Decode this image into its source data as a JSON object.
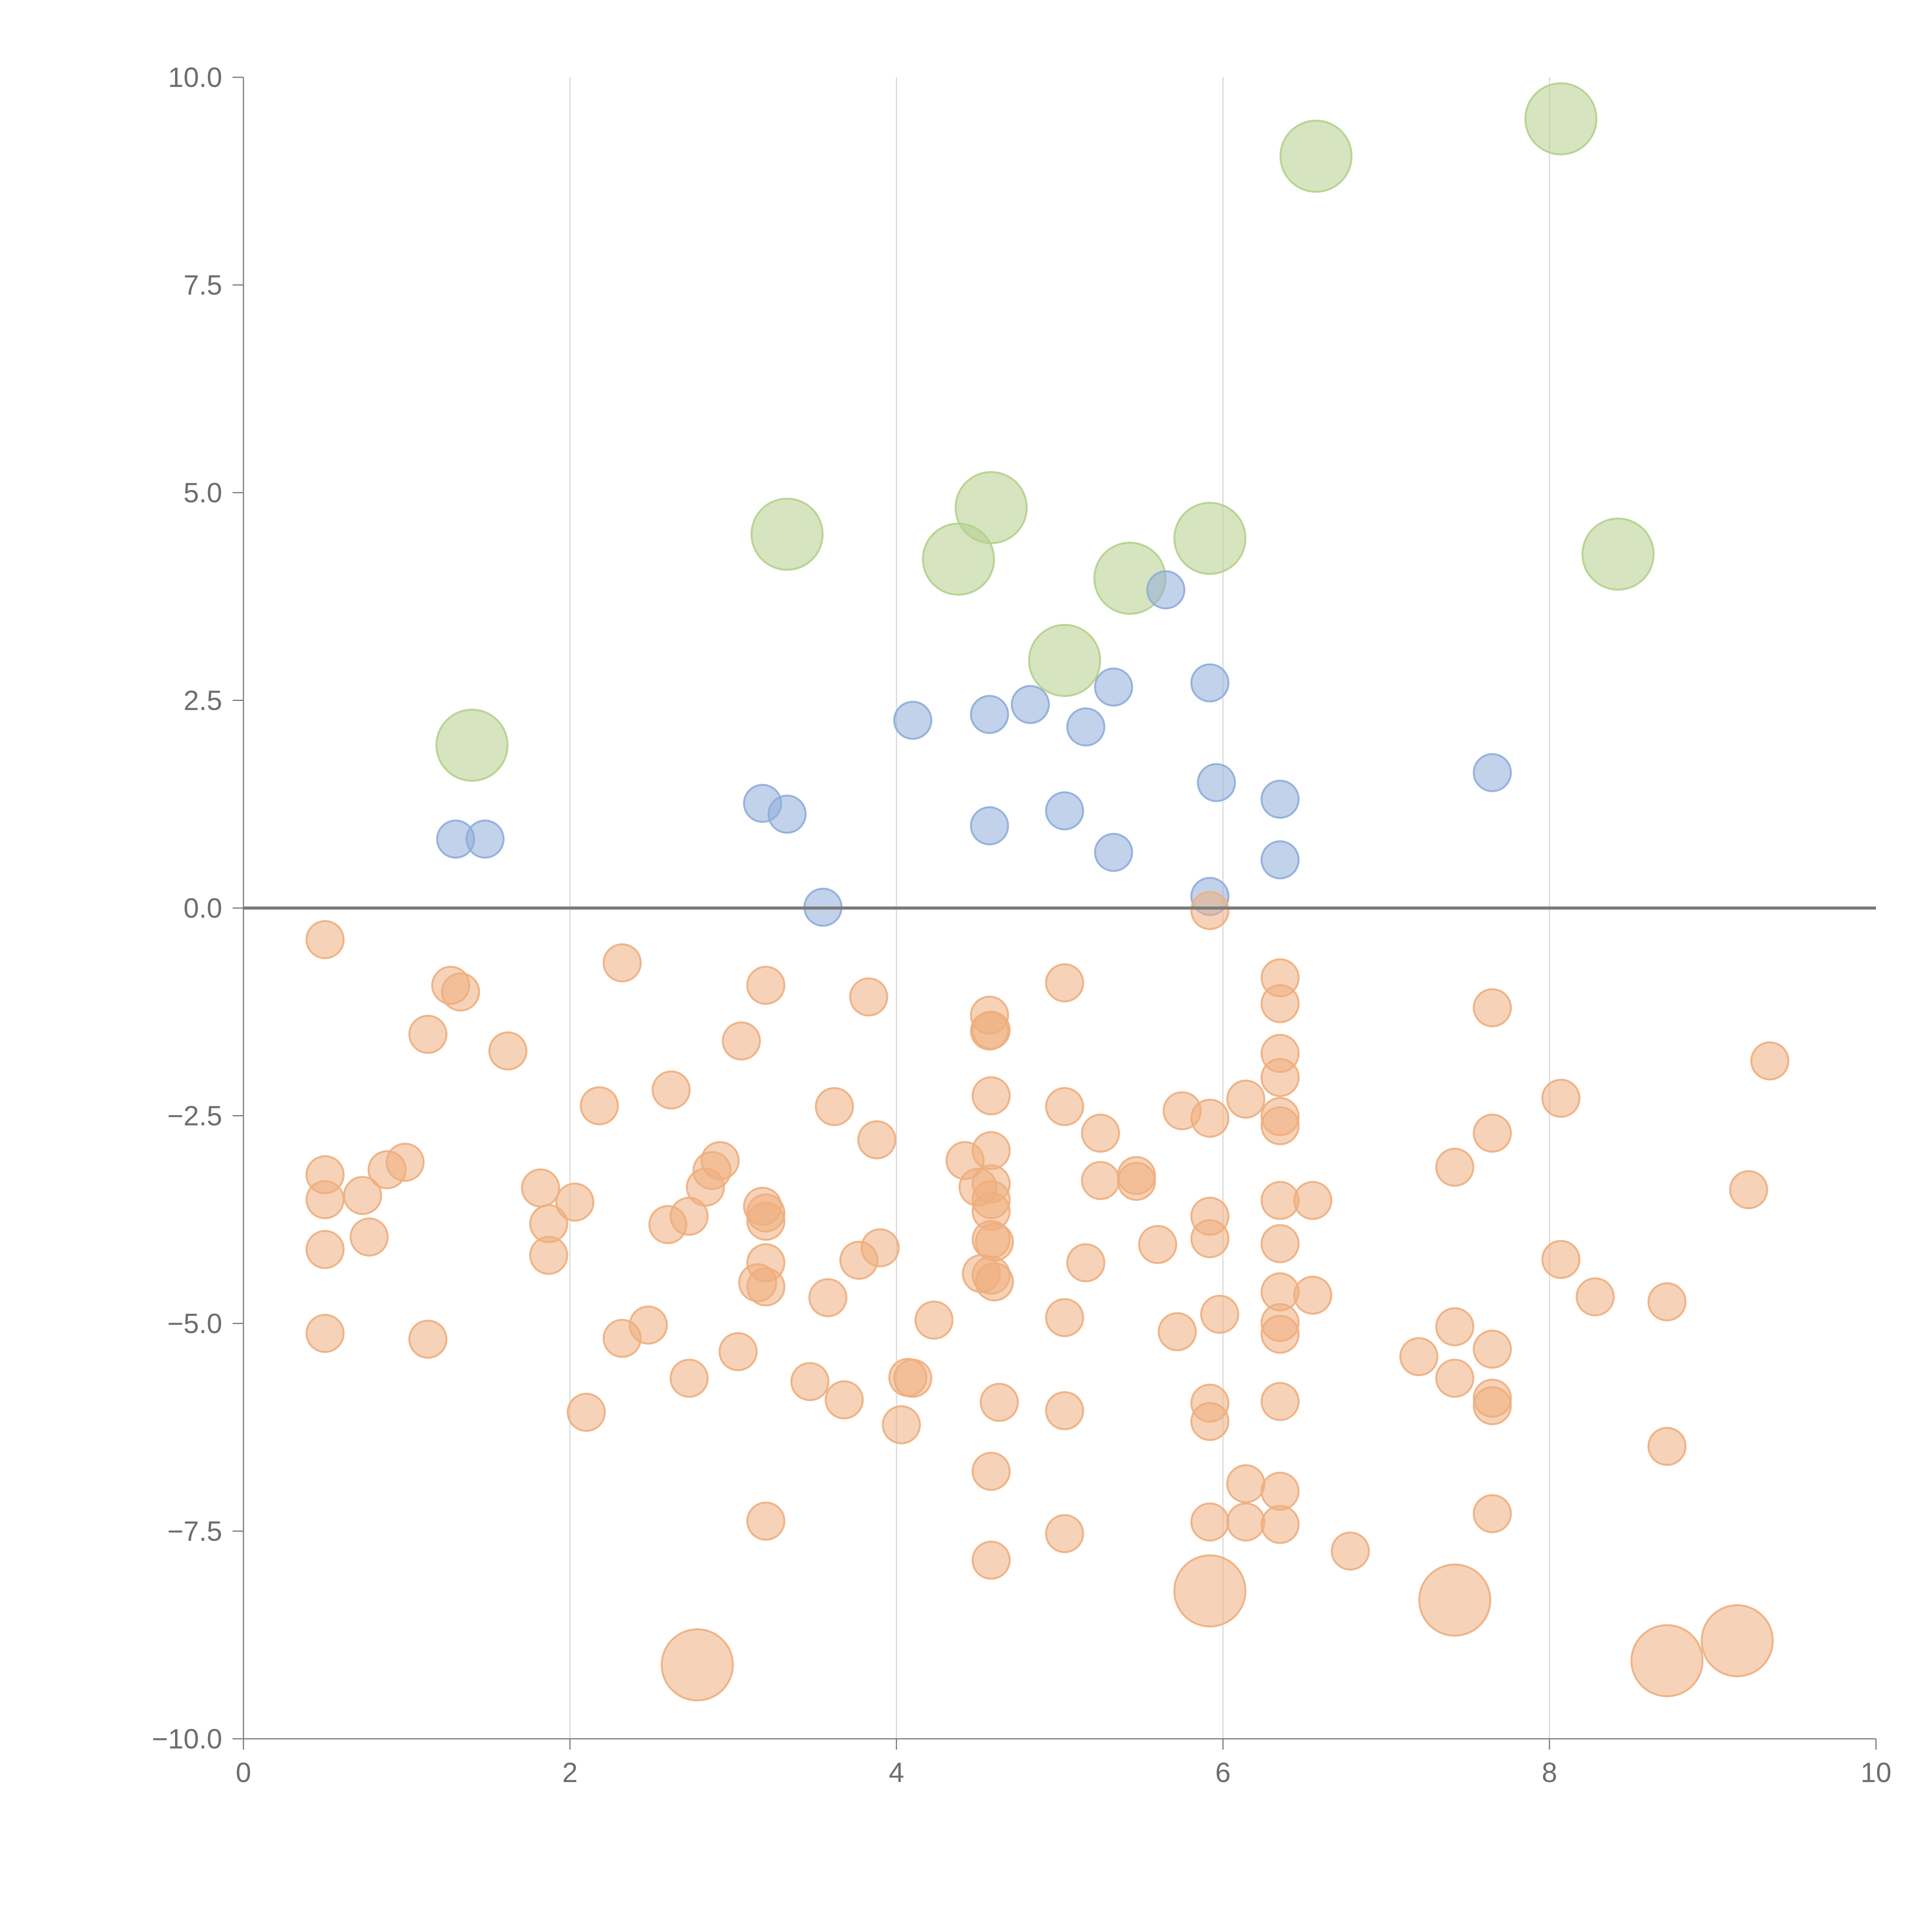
{
  "chart_data": {
    "type": "scatter",
    "title": "",
    "xlabel": "",
    "ylabel": "",
    "xlim": [
      0,
      10
    ],
    "ylim": [
      -10,
      10
    ],
    "grid": "vertical",
    "x_ticks": [
      0,
      2,
      4,
      6,
      8,
      10
    ],
    "x_tick_labels": [
      "0",
      "2",
      "4",
      "6",
      "8",
      "10"
    ],
    "y_ticks": [
      10,
      7.5,
      5,
      2.5,
      0,
      -2.5,
      -5,
      -7.5,
      -10
    ],
    "y_tick_labels": [
      "10.0",
      "7.5",
      "5.0",
      "2.5",
      "0.0",
      "−2.5",
      "−5.0",
      "−7.5",
      "−10.0"
    ],
    "colors": {
      "large_positive": "#b5d08c",
      "positive": "#8fadda",
      "negative": "#eeae7e",
      "large_negative": "#eeae7e"
    },
    "series": [
      {
        "name": "large_positive",
        "size": "large",
        "points": [
          [
            6.57,
            9.05
          ],
          [
            8.07,
            9.5
          ],
          [
            3.33,
            4.5
          ],
          [
            4.58,
            4.82
          ],
          [
            4.38,
            4.2
          ],
          [
            5.92,
            4.45
          ],
          [
            5.43,
            3.97
          ],
          [
            8.42,
            4.26
          ],
          [
            5.03,
            2.98
          ],
          [
            1.4,
            1.96
          ]
        ]
      },
      {
        "name": "positive",
        "size": "small",
        "points": [
          [
            1.3,
            0.83
          ],
          [
            1.48,
            0.83
          ],
          [
            3.18,
            1.26
          ],
          [
            3.33,
            1.13
          ],
          [
            3.55,
            0.01
          ],
          [
            4.1,
            2.26
          ],
          [
            4.57,
            2.33
          ],
          [
            4.82,
            2.45
          ],
          [
            5.16,
            2.18
          ],
          [
            5.33,
            2.66
          ],
          [
            5.92,
            2.71
          ],
          [
            5.65,
            3.83
          ],
          [
            5.96,
            1.51
          ],
          [
            6.35,
            1.31
          ],
          [
            7.65,
            1.63
          ],
          [
            4.57,
            0.99
          ],
          [
            5.03,
            1.17
          ],
          [
            5.33,
            0.67
          ],
          [
            5.92,
            0.14
          ],
          [
            6.35,
            0.58
          ]
        ]
      },
      {
        "name": "negative",
        "size": "small",
        "points": [
          [
            0.5,
            -0.38
          ],
          [
            0.5,
            -3.21
          ],
          [
            0.5,
            -3.51
          ],
          [
            0.5,
            -4.11
          ],
          [
            0.5,
            -5.12
          ],
          [
            0.73,
            -3.46
          ],
          [
            0.77,
            -3.96
          ],
          [
            0.88,
            -3.15
          ],
          [
            0.99,
            -3.06
          ],
          [
            1.13,
            -1.52
          ],
          [
            1.13,
            -5.19
          ],
          [
            1.27,
            -0.93
          ],
          [
            1.33,
            -1.01
          ],
          [
            1.62,
            -1.72
          ],
          [
            1.82,
            -3.37
          ],
          [
            1.87,
            -3.8
          ],
          [
            1.87,
            -4.18
          ],
          [
            2.03,
            -3.54
          ],
          [
            2.1,
            -6.07
          ],
          [
            2.18,
            -2.38
          ],
          [
            2.32,
            -0.66
          ],
          [
            2.32,
            -5.18
          ],
          [
            2.48,
            -5.02
          ],
          [
            2.6,
            -3.81
          ],
          [
            2.62,
            -2.19
          ],
          [
            2.73,
            -3.71
          ],
          [
            2.73,
            -5.66
          ],
          [
            2.83,
            -3.36
          ],
          [
            2.87,
            -3.16
          ],
          [
            2.92,
            -3.04
          ],
          [
            3.03,
            -5.34
          ],
          [
            3.05,
            -1.6
          ],
          [
            3.15,
            -4.51
          ],
          [
            3.18,
            -3.59
          ],
          [
            3.2,
            -0.93
          ],
          [
            3.2,
            -3.67
          ],
          [
            3.2,
            -3.77
          ],
          [
            3.2,
            -4.27
          ],
          [
            3.2,
            -4.56
          ],
          [
            3.2,
            -7.38
          ],
          [
            3.47,
            -5.7
          ],
          [
            3.58,
            -4.69
          ],
          [
            3.62,
            -2.39
          ],
          [
            3.68,
            -5.92
          ],
          [
            3.77,
            -4.24
          ],
          [
            3.83,
            -1.07
          ],
          [
            3.88,
            -2.79
          ],
          [
            3.9,
            -4.09
          ],
          [
            4.03,
            -6.22
          ],
          [
            4.07,
            -5.65
          ],
          [
            4.1,
            -5.66
          ],
          [
            4.23,
            -4.96
          ],
          [
            4.42,
            -3.04
          ],
          [
            4.5,
            -3.36
          ],
          [
            4.52,
            -4.4
          ],
          [
            4.57,
            -1.29
          ],
          [
            4.57,
            -1.48
          ],
          [
            4.58,
            -1.47
          ],
          [
            4.58,
            -2.26
          ],
          [
            4.58,
            -2.92
          ],
          [
            4.58,
            -3.32
          ],
          [
            4.58,
            -3.51
          ],
          [
            4.58,
            -3.65
          ],
          [
            4.58,
            -3.99
          ],
          [
            4.6,
            -4.02
          ],
          [
            4.58,
            -4.42
          ],
          [
            4.6,
            -4.5
          ],
          [
            4.58,
            -6.78
          ],
          [
            4.58,
            -7.85
          ],
          [
            4.63,
            -5.95
          ],
          [
            5.03,
            -0.9
          ],
          [
            5.03,
            -2.39
          ],
          [
            5.03,
            -4.93
          ],
          [
            5.03,
            -6.05
          ],
          [
            5.03,
            -7.53
          ],
          [
            5.16,
            -4.27
          ],
          [
            5.25,
            -2.71
          ],
          [
            5.25,
            -3.28
          ],
          [
            5.47,
            -3.22
          ],
          [
            5.47,
            -3.29
          ],
          [
            5.6,
            -4.05
          ],
          [
            5.72,
            -5.1
          ],
          [
            5.75,
            -2.44
          ],
          [
            5.92,
            -0.03
          ],
          [
            5.92,
            -2.53
          ],
          [
            5.92,
            -3.71
          ],
          [
            5.92,
            -3.98
          ],
          [
            5.92,
            -5.96
          ],
          [
            5.92,
            -6.18
          ],
          [
            5.92,
            -7.39
          ],
          [
            5.98,
            -4.89
          ],
          [
            6.14,
            -2.3
          ],
          [
            6.14,
            -6.93
          ],
          [
            6.14,
            -7.39
          ],
          [
            6.35,
            -0.84
          ],
          [
            6.35,
            -1.15
          ],
          [
            6.35,
            -1.75
          ],
          [
            6.35,
            -2.04
          ],
          [
            6.35,
            -2.51
          ],
          [
            6.35,
            -2.62
          ],
          [
            6.35,
            -3.52
          ],
          [
            6.35,
            -4.04
          ],
          [
            6.35,
            -4.62
          ],
          [
            6.35,
            -4.99
          ],
          [
            6.35,
            -5.13
          ],
          [
            6.35,
            -5.94
          ],
          [
            6.35,
            -7.02
          ],
          [
            6.35,
            -7.42
          ],
          [
            6.55,
            -3.52
          ],
          [
            6.55,
            -4.66
          ],
          [
            6.78,
            -7.74
          ],
          [
            7.2,
            -5.4
          ],
          [
            7.42,
            -3.12
          ],
          [
            7.42,
            -5.04
          ],
          [
            7.42,
            -5.66
          ],
          [
            7.65,
            -1.2
          ],
          [
            7.65,
            -2.71
          ],
          [
            7.65,
            -5.31
          ],
          [
            7.65,
            -5.9
          ],
          [
            7.65,
            -5.99
          ],
          [
            7.65,
            -7.29
          ],
          [
            8.07,
            -2.29
          ],
          [
            8.07,
            -4.23
          ],
          [
            8.28,
            -4.68
          ],
          [
            8.72,
            -4.74
          ],
          [
            8.72,
            -6.48
          ],
          [
            9.22,
            -3.39
          ],
          [
            9.35,
            -1.84
          ]
        ]
      },
      {
        "name": "large_negative",
        "size": "large",
        "points": [
          [
            2.78,
            -9.11
          ],
          [
            5.92,
            -8.22
          ],
          [
            7.42,
            -8.33
          ],
          [
            8.72,
            -9.06
          ],
          [
            9.15,
            -8.82
          ]
        ]
      }
    ]
  }
}
